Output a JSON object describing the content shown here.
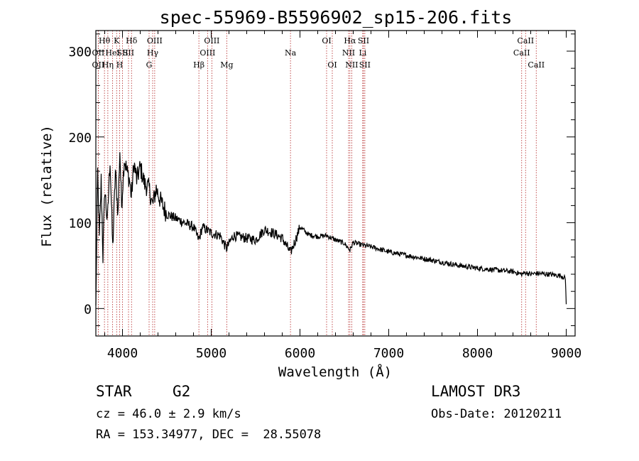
{
  "chart_data": {
    "type": "line",
    "title": "spec-55969-B5596902_sp15-206.fits",
    "xlabel": "Wavelength (Å)",
    "ylabel": "Flux (relative)",
    "xlim": [
      3700,
      9100
    ],
    "ylim": [
      -32,
      324
    ],
    "x_ticks": [
      4000,
      5000,
      6000,
      7000,
      8000,
      9000
    ],
    "y_ticks": [
      0,
      100,
      200,
      300
    ],
    "grid": false,
    "series": [
      {
        "name": "spectrum",
        "x": [
          3700,
          3720,
          3740,
          3760,
          3780,
          3800,
          3830,
          3860,
          3890,
          3920,
          3950,
          3970,
          3990,
          4020,
          4050,
          4080,
          4100,
          4130,
          4160,
          4200,
          4250,
          4300,
          4340,
          4380,
          4430,
          4500,
          4600,
          4700,
          4800,
          4861,
          4900,
          5000,
          5100,
          5172,
          5250,
          5400,
          5500,
          5600,
          5700,
          5800,
          5893,
          5950,
          6000,
          6100,
          6200,
          6300,
          6400,
          6500,
          6563,
          6600,
          6700,
          6800,
          7000,
          7200,
          7400,
          7600,
          7800,
          8000,
          8200,
          8400,
          8498,
          8542,
          8600,
          8662,
          8800,
          8950,
          8990,
          9000
        ],
        "y": [
          0,
          160,
          80,
          150,
          60,
          140,
          100,
          175,
          70,
          160,
          110,
          185,
          120,
          175,
          160,
          150,
          130,
          170,
          150,
          165,
          145,
          140,
          120,
          140,
          125,
          110,
          105,
          100,
          95,
          80,
          95,
          88,
          85,
          70,
          85,
          82,
          80,
          92,
          88,
          82,
          65,
          80,
          95,
          86,
          84,
          85,
          80,
          76,
          68,
          77,
          74,
          72,
          66,
          62,
          58,
          54,
          50,
          47,
          45,
          43,
          40,
          42,
          40,
          41,
          40,
          38,
          35,
          5
        ]
      }
    ],
    "lines_top": [
      {
        "x": 3797,
        "label": "Hθ",
        "row": 1
      },
      {
        "x": 3727,
        "label": "OII",
        "row": 2
      },
      {
        "x": 3727,
        "label": "OII",
        "row": 3
      },
      {
        "x": 3835,
        "label": "Hη",
        "row": 3
      },
      {
        "x": 3889,
        "label": "HeI",
        "row": 2
      },
      {
        "x": 3934,
        "label": "K",
        "row": 1
      },
      {
        "x": 3968,
        "label": "H",
        "row": 3
      },
      {
        "x": 4000,
        "label": "SII",
        "row": 2
      },
      {
        "x": 4102,
        "label": "Hδ",
        "row": 1
      },
      {
        "x": 4068,
        "label": "SII",
        "row": 2
      },
      {
        "x": 4340,
        "label": "Hγ",
        "row": 2
      },
      {
        "x": 4300,
        "label": "G",
        "row": 3
      },
      {
        "x": 4363,
        "label": "OIII",
        "row": 1
      },
      {
        "x": 4861,
        "label": "Hβ",
        "row": 3
      },
      {
        "x": 4959,
        "label": "OIII",
        "row": 2
      },
      {
        "x": 5007,
        "label": "OIII",
        "row": 1
      },
      {
        "x": 5175,
        "label": "Mg",
        "row": 3
      },
      {
        "x": 5893,
        "label": "Na",
        "row": 2
      },
      {
        "x": 6300,
        "label": "OI",
        "row": 1
      },
      {
        "x": 6364,
        "label": "OI",
        "row": 3
      },
      {
        "x": 6548,
        "label": "NII",
        "row": 2
      },
      {
        "x": 6563,
        "label": "Hα",
        "row": 1
      },
      {
        "x": 6583,
        "label": "NII",
        "row": 3
      },
      {
        "x": 6707,
        "label": "Li",
        "row": 2
      },
      {
        "x": 6716,
        "label": "SII",
        "row": 1
      },
      {
        "x": 6731,
        "label": "SII",
        "row": 3
      },
      {
        "x": 8498,
        "label": "CaII",
        "row": 2
      },
      {
        "x": 8542,
        "label": "CaII",
        "row": 1
      },
      {
        "x": 8662,
        "label": "CaII",
        "row": 3
      }
    ]
  },
  "info": {
    "class_label": "STAR",
    "subclass": "G2",
    "survey": "LAMOST DR3",
    "cz": "cz = 46.0 ± 2.9 km/s",
    "obs_date": "Obs-Date: 20120211",
    "coords": "RA = 153.34977, DEC =  28.55078"
  },
  "colors": {
    "line_marker": "#b22222",
    "spectrum": "#000000"
  }
}
